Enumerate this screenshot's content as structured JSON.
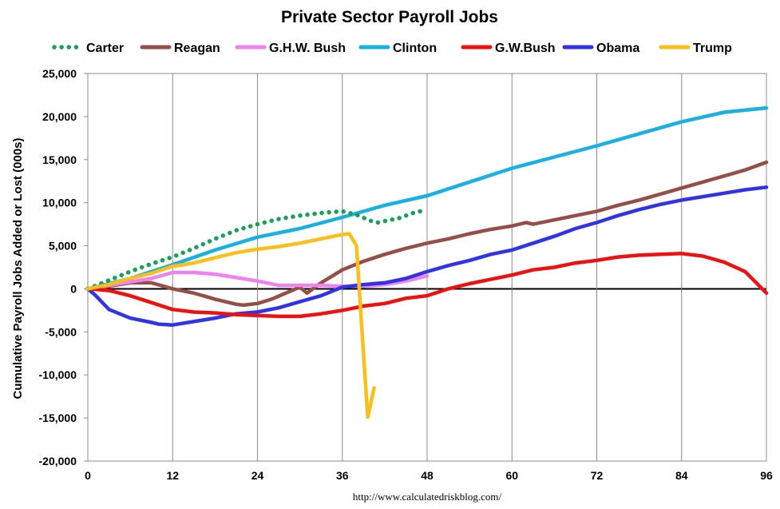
{
  "chart_data": {
    "type": "line",
    "title": "Private Sector Payroll Jobs",
    "ylabel": "Cumulative Payroll Jobs Added or  Lost (000s)",
    "xlabel": "",
    "source": "http://www.calculatedriskblog.com/",
    "xlim": [
      0,
      96
    ],
    "ylim": [
      -20000,
      25000
    ],
    "x_ticks": [
      0,
      12,
      24,
      36,
      48,
      60,
      72,
      84,
      96
    ],
    "y_ticks": [
      -20000,
      -15000,
      -10000,
      -5000,
      0,
      5000,
      10000,
      15000,
      20000,
      25000
    ],
    "y_tick_labels": [
      "-20,000",
      "-15,000",
      "-10,000",
      "-5,000",
      "0",
      "5,000",
      "10,000",
      "15,000",
      "20,000",
      "25,000"
    ],
    "grid": "vertical",
    "legend_position": "top",
    "series": [
      {
        "name": "Carter",
        "color": "#1aa05a",
        "style": "dotted",
        "x": [
          0,
          3,
          6,
          9,
          12,
          15,
          18,
          21,
          24,
          27,
          30,
          33,
          36,
          38,
          40,
          41,
          44,
          46,
          47
        ],
        "y": [
          0,
          1000,
          2000,
          2900,
          3700,
          4700,
          5800,
          6800,
          7500,
          8100,
          8500,
          8800,
          9000,
          8600,
          7900,
          7700,
          8200,
          8800,
          9000
        ]
      },
      {
        "name": "Reagan",
        "color": "#954f48",
        "style": "solid",
        "x": [
          0,
          3,
          6,
          9,
          12,
          15,
          18,
          21,
          22,
          24,
          26,
          28,
          30,
          31,
          33,
          36,
          39,
          42,
          45,
          48,
          51,
          54,
          57,
          60,
          62,
          63,
          66,
          69,
          72,
          75,
          78,
          81,
          84,
          87,
          90,
          93,
          96
        ],
        "y": [
          0,
          300,
          700,
          700,
          0,
          -500,
          -1200,
          -1800,
          -1900,
          -1700,
          -1200,
          -500,
          200,
          -500,
          700,
          2200,
          3200,
          4000,
          4700,
          5300,
          5800,
          6400,
          6900,
          7300,
          7700,
          7500,
          8000,
          8500,
          9000,
          9700,
          10300,
          11000,
          11700,
          12400,
          13100,
          13800,
          14700
        ]
      },
      {
        "name": "G.H.W. Bush",
        "color": "#ee82ee",
        "style": "solid",
        "x": [
          0,
          3,
          6,
          9,
          12,
          15,
          18,
          21,
          24,
          27,
          30,
          33,
          36,
          39,
          42,
          45,
          48
        ],
        "y": [
          0,
          400,
          800,
          1200,
          1900,
          1900,
          1700,
          1300,
          900,
          400,
          400,
          400,
          300,
          300,
          500,
          900,
          1500
        ]
      },
      {
        "name": "Clinton",
        "color": "#1ab0e0",
        "style": "solid",
        "x": [
          0,
          6,
          12,
          18,
          24,
          30,
          36,
          42,
          48,
          54,
          60,
          66,
          72,
          78,
          84,
          90,
          96
        ],
        "y": [
          0,
          1200,
          2800,
          4500,
          6000,
          7000,
          8300,
          9700,
          10800,
          12400,
          14000,
          15300,
          16600,
          18000,
          19400,
          20500,
          21000
        ]
      },
      {
        "name": "G.W.Bush",
        "color": "#ee1111",
        "style": "solid",
        "x": [
          0,
          3,
          6,
          9,
          12,
          15,
          18,
          21,
          24,
          27,
          30,
          33,
          36,
          39,
          42,
          45,
          48,
          51,
          54,
          57,
          60,
          63,
          66,
          69,
          72,
          75,
          78,
          81,
          84,
          87,
          90,
          93,
          96
        ],
        "y": [
          0,
          -200,
          -800,
          -1600,
          -2400,
          -2700,
          -2800,
          -3000,
          -3100,
          -3200,
          -3200,
          -2900,
          -2500,
          -2000,
          -1700,
          -1100,
          -800,
          0,
          600,
          1100,
          1600,
          2200,
          2500,
          3000,
          3300,
          3700,
          3900,
          4000,
          4100,
          3800,
          3100,
          2000,
          -500
        ]
      },
      {
        "name": "Obama",
        "color": "#3333e6",
        "style": "solid",
        "x": [
          0,
          1,
          3,
          6,
          9,
          10,
          12,
          15,
          18,
          21,
          24,
          27,
          30,
          33,
          36,
          39,
          42,
          45,
          48,
          51,
          54,
          57,
          60,
          63,
          66,
          69,
          72,
          75,
          78,
          81,
          84,
          87,
          90,
          93,
          96
        ],
        "y": [
          0,
          -700,
          -2400,
          -3400,
          -3900,
          -4100,
          -4200,
          -3800,
          -3400,
          -2900,
          -2700,
          -2200,
          -1500,
          -800,
          200,
          500,
          700,
          1200,
          2000,
          2700,
          3300,
          4000,
          4500,
          5300,
          6100,
          7000,
          7700,
          8500,
          9200,
          9800,
          10300,
          10700,
          11100,
          11500,
          11800
        ]
      },
      {
        "name": "Trump",
        "color": "#fbbf1b",
        "style": "solid",
        "x": [
          0,
          3,
          6,
          9,
          12,
          15,
          18,
          21,
          24,
          27,
          30,
          33,
          36,
          37,
          38,
          38.8,
          39.6,
          40.5
        ],
        "y": [
          0,
          500,
          1200,
          1800,
          2600,
          3000,
          3600,
          4200,
          4600,
          4900,
          5300,
          5800,
          6300,
          6400,
          5000,
          -5000,
          -14900,
          -11500
        ]
      }
    ]
  }
}
